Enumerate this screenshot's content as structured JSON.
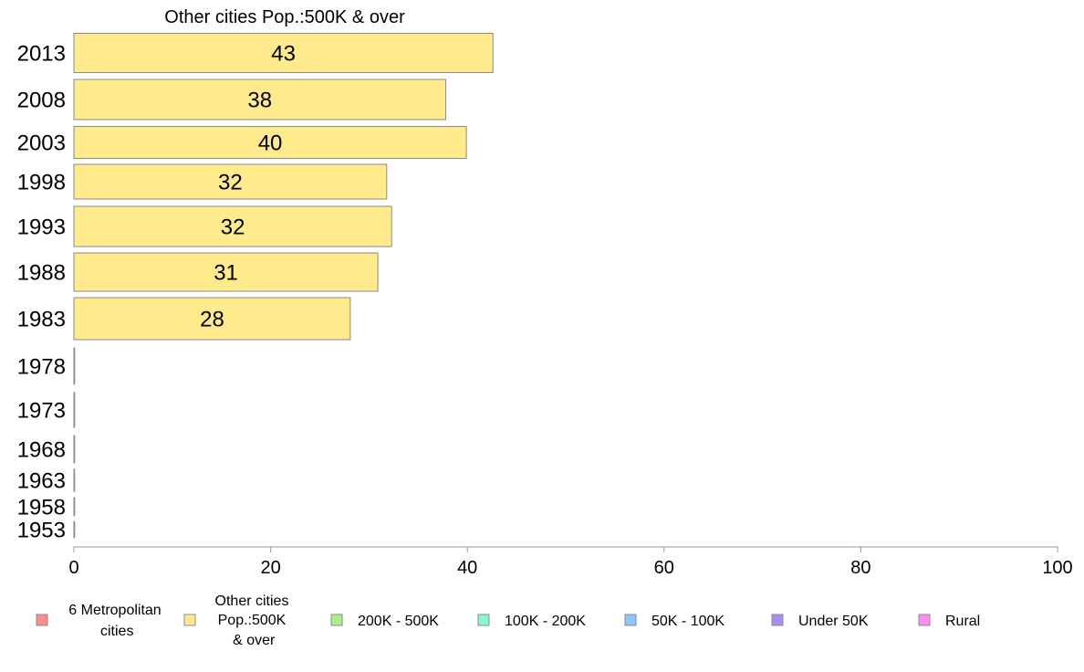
{
  "chart_data": {
    "type": "bar",
    "orientation": "horizontal",
    "title": "Other cities Pop.:500K & over",
    "xlabel": "",
    "ylabel": "",
    "xlim": [
      0,
      100
    ],
    "x_ticks": [
      "0",
      "20",
      "40",
      "60",
      "80",
      "100"
    ],
    "grid": false,
    "categories": [
      "2013",
      "2008",
      "2003",
      "1998",
      "1993",
      "1988",
      "1983",
      "1978",
      "1973",
      "1968",
      "1963",
      "1958",
      "1953"
    ],
    "series": [
      {
        "values": [
          42.6,
          37.8,
          39.9,
          31.8,
          32.3,
          30.9,
          28.1,
          0,
          0,
          0,
          0,
          0,
          0
        ],
        "data_labels": [
          "43",
          "38",
          "40",
          "32",
          "32",
          "31",
          "28",
          "",
          "",
          "",
          "",
          "",
          ""
        ],
        "color": "#FFEB8C"
      }
    ],
    "legend": {
      "placement": "bottom",
      "items": [
        {
          "label": [
            "6 Metropolitan",
            " cities"
          ],
          "color": "#FF8C8C"
        },
        {
          "label": [
            "Other cities",
            "Pop.:500K",
            " & over"
          ],
          "color": "#FFEB8C"
        },
        {
          "label": [
            "200K - 500K"
          ],
          "color": "#A8F08C"
        },
        {
          "label": [
            "100K - 200K"
          ],
          "color": "#8CF5D2"
        },
        {
          "label": [
            "50K - 100K"
          ],
          "color": "#8CC8FF"
        },
        {
          "label": [
            "Under 50K"
          ],
          "color": "#AA8CF5"
        },
        {
          "label": [
            "Rural"
          ],
          "color": "#FF8CF0"
        }
      ]
    }
  }
}
